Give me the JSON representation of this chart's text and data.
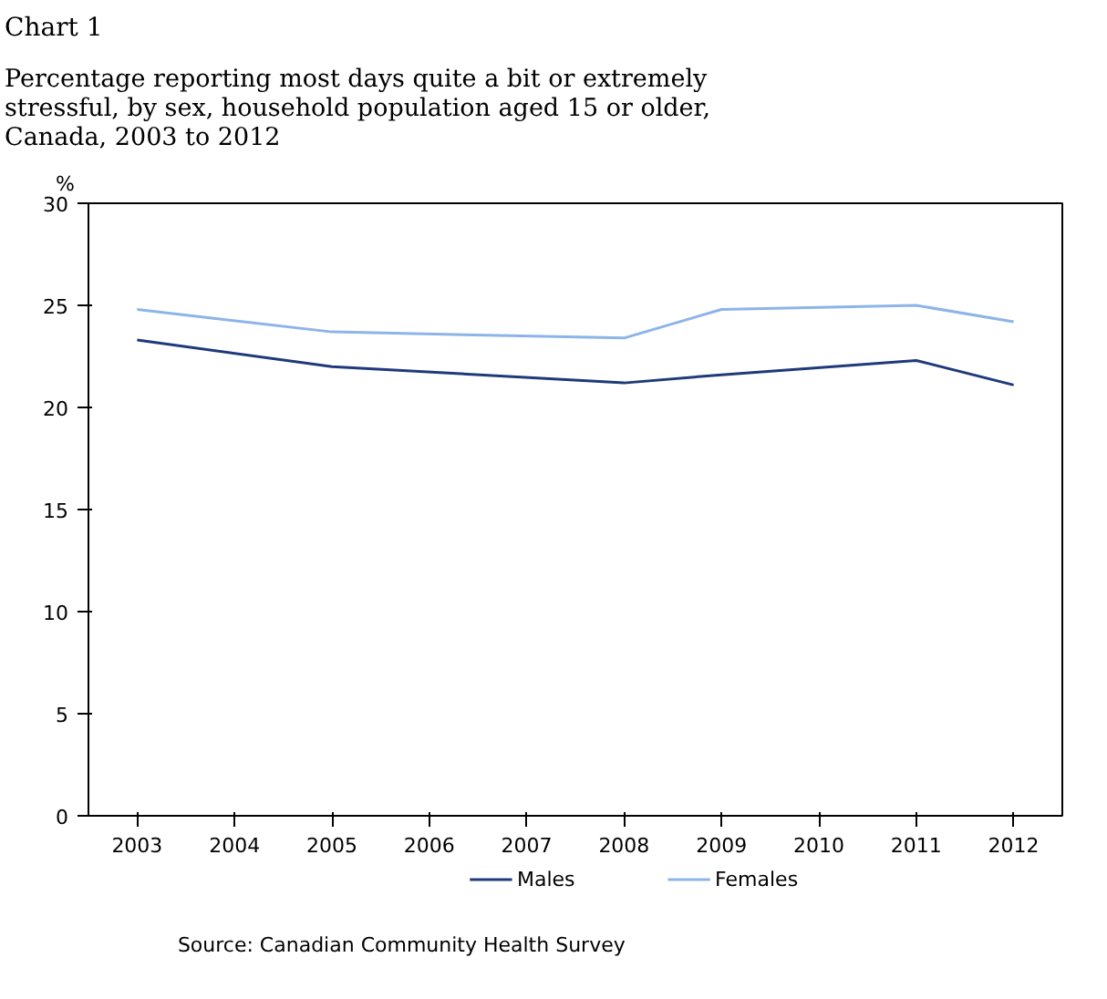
{
  "chart_data": {
    "type": "line",
    "title": "Chart 1",
    "subtitle": "Percentage reporting most days quite a bit or extremely\nstressful, by sex, household population aged 15 or older,\nCanada, 2003 to 2012",
    "ylabel": "%",
    "x": [
      2003,
      2005,
      2008,
      2009,
      2011,
      2012
    ],
    "series": [
      {
        "name": "Males",
        "color": "#1f3a7a",
        "values": [
          23.3,
          22.0,
          21.2,
          21.6,
          22.3,
          21.1
        ]
      },
      {
        "name": "Females",
        "color": "#8db4e8",
        "values": [
          24.8,
          23.7,
          23.4,
          24.8,
          25.0,
          24.2
        ]
      }
    ],
    "xlim": [
      2002.5,
      2012.5
    ],
    "xticks": [
      2003,
      2004,
      2005,
      2006,
      2007,
      2008,
      2009,
      2010,
      2011,
      2012
    ],
    "ylim": [
      0,
      30
    ],
    "yticks": [
      0,
      5,
      10,
      15,
      20,
      25,
      30
    ],
    "grid": false,
    "legend": "bottom",
    "marker": "none",
    "line_style": "solid",
    "annotations": [
      "Source: Canadian Community Health Survey"
    ]
  }
}
